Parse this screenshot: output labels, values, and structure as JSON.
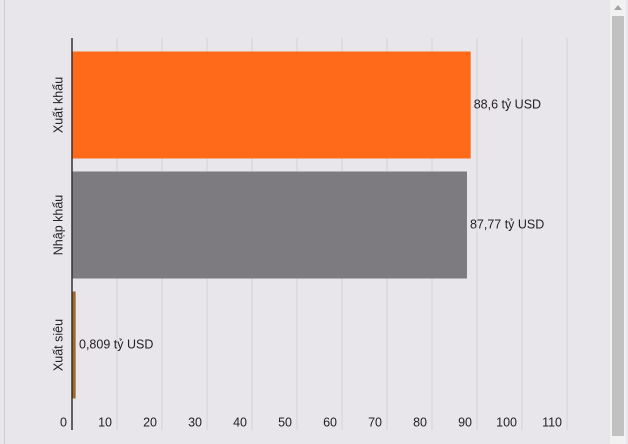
{
  "chart_data": {
    "type": "hbar",
    "categories": [
      "Xuất khẩu",
      "Nhập khẩu",
      "Xuất siêu"
    ],
    "values": [
      88.6,
      87.77,
      0.809
    ],
    "value_labels": [
      "88,6 tỷ USD",
      "87,77 tỷ USD",
      "0,809 tỷ USD"
    ],
    "colors": [
      "#ff6a1a",
      "#7d7a80",
      "#a0672a"
    ],
    "xlim": [
      0,
      110
    ],
    "xticks": [
      0,
      10,
      20,
      30,
      40,
      50,
      60,
      70,
      80,
      90,
      100,
      110
    ],
    "grid": true
  }
}
